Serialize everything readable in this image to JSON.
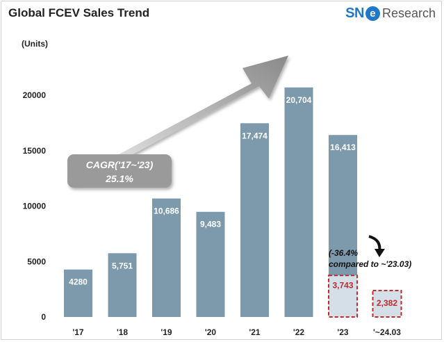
{
  "header": {
    "title": "Global FCEV Sales Trend",
    "brand_sn": "SN",
    "brand_e": "e",
    "brand_rest": "Research"
  },
  "chart_data": {
    "type": "bar",
    "ylabel": "(Units)",
    "ylim": [
      0,
      20000
    ],
    "yticks": [
      0,
      5000,
      10000,
      15000,
      20000
    ],
    "categories": [
      "'17",
      "'18",
      "'19",
      "'20",
      "'21",
      "'22",
      "'23",
      "'~24.03"
    ],
    "values": [
      4280,
      5751,
      10686,
      9483,
      17474,
      20704,
      16413,
      2382
    ],
    "value_labels": [
      "4280",
      "5,751",
      "10,686",
      "9,483",
      "17,474",
      "20,704",
      "16,413",
      "2,382"
    ],
    "grid": false,
    "legend": "none",
    "subset": {
      "category": "'23",
      "value": 3743,
      "label": "3,743"
    },
    "annotations": {
      "cagr_label": "CAGR('17~'23)",
      "cagr_value": "25.1%",
      "change_line1": "(-36.4%",
      "change_line2": "compared to ~'23.03)"
    },
    "colors": {
      "bar": "#7d9aad",
      "highlight_fill": "#d5dfe8",
      "highlight_border": "#c0282c",
      "highlight_text": "#c0282c",
      "label": "#ffffff",
      "axis_text": "#222222"
    }
  }
}
